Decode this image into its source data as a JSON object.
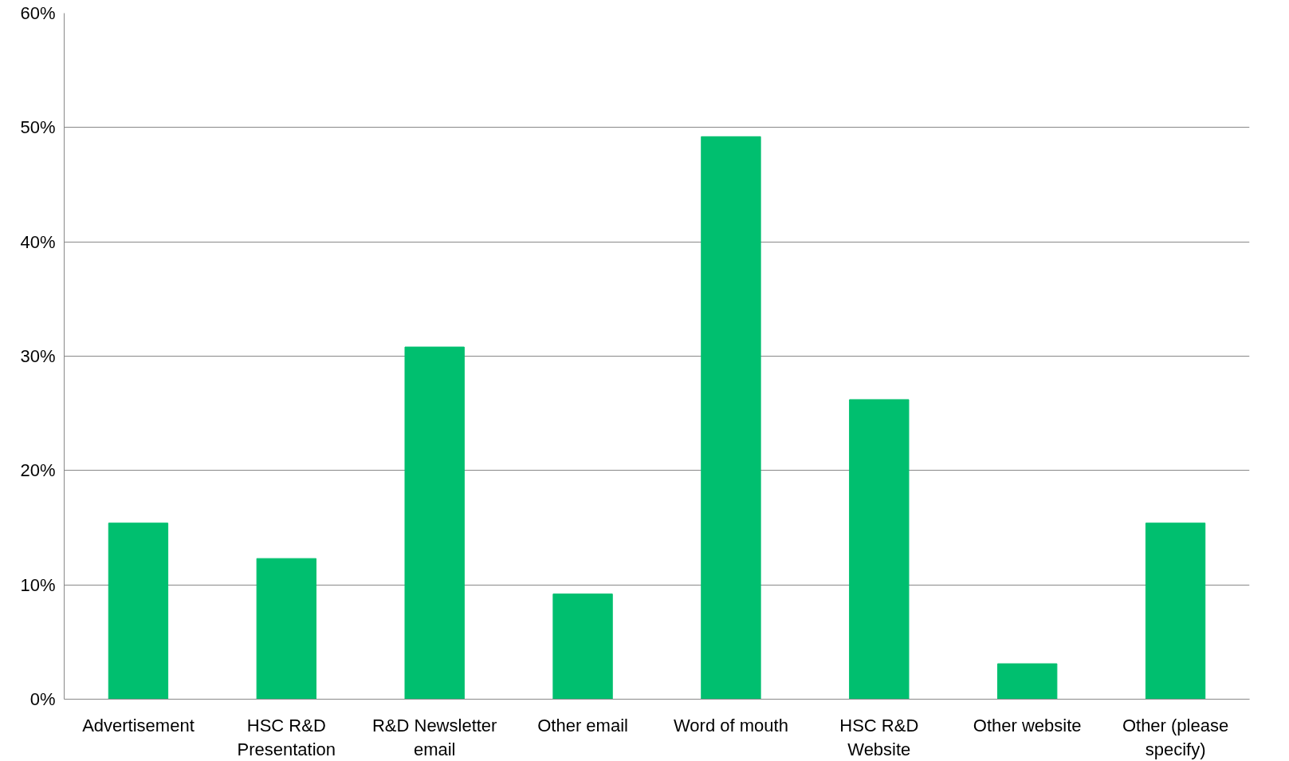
{
  "chart_data": {
    "type": "bar",
    "categories": [
      "Advertisement",
      "HSC R&D\nPresentation",
      "R&D Newsletter\nemail",
      "Other email",
      "Word of mouth",
      "HSC R&D\nWebsite",
      "Other website",
      "Other (please\nspecify)"
    ],
    "values": [
      15.4,
      12.3,
      30.8,
      9.2,
      49.2,
      26.2,
      3.1,
      15.4
    ],
    "color": "#00bf6f",
    "ylim": [
      0,
      60
    ],
    "yticks": [
      {
        "value": 0,
        "label": "0%"
      },
      {
        "value": 10,
        "label": "10%"
      },
      {
        "value": 20,
        "label": "20%"
      },
      {
        "value": 30,
        "label": "30%"
      },
      {
        "value": 40,
        "label": "40%"
      },
      {
        "value": 50,
        "label": "50%"
      },
      {
        "value": 60,
        "label": "60%"
      }
    ],
    "grid": "y"
  }
}
